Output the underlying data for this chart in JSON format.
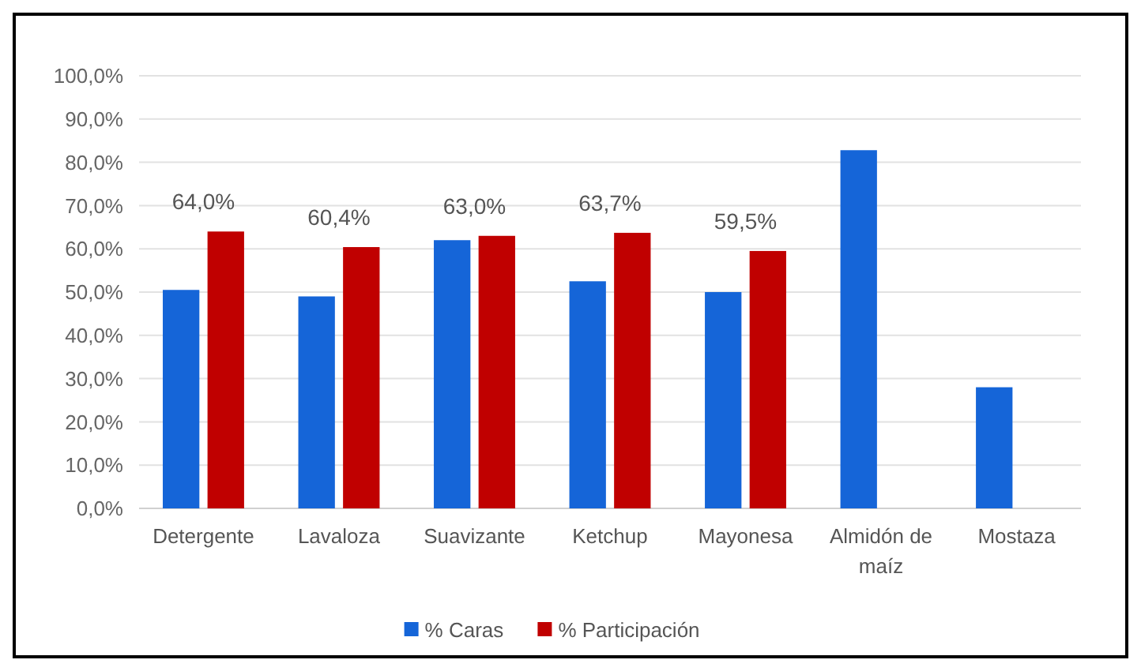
{
  "chart_data": {
    "type": "bar",
    "categories": [
      "Detergente",
      "Lavaloza",
      "Suavizante",
      "Ketchup",
      "Mayonesa",
      "Almidón de maíz",
      "Mostaza"
    ],
    "series": [
      {
        "name": "% Caras",
        "color": "#1565d8",
        "values": [
          50.5,
          49,
          62,
          52.5,
          50,
          82.8,
          28
        ]
      },
      {
        "name": "% Participación",
        "color": "#c00000",
        "values": [
          64,
          60.4,
          63,
          63.7,
          59.5,
          null,
          null
        ],
        "value_labels": [
          "64,0%",
          "60,4%",
          "63,0%",
          "63,7%",
          "59,5%",
          null,
          null
        ]
      }
    ],
    "ylim": [
      0,
      100
    ],
    "yticks": [
      {
        "value": 0,
        "label": "0,0%"
      },
      {
        "value": 10,
        "label": "10,0%"
      },
      {
        "value": 20,
        "label": "20,0%"
      },
      {
        "value": 30,
        "label": "30,0%"
      },
      {
        "value": 40,
        "label": "40,0%"
      },
      {
        "value": 50,
        "label": "50,0%"
      },
      {
        "value": 60,
        "label": "60,0%"
      },
      {
        "value": 70,
        "label": "70,0%"
      },
      {
        "value": 80,
        "label": "80,0%"
      },
      {
        "value": 90,
        "label": "90,0%"
      },
      {
        "value": 100,
        "label": "100,0%"
      }
    ],
    "grid": "y",
    "legend": "bottom"
  }
}
